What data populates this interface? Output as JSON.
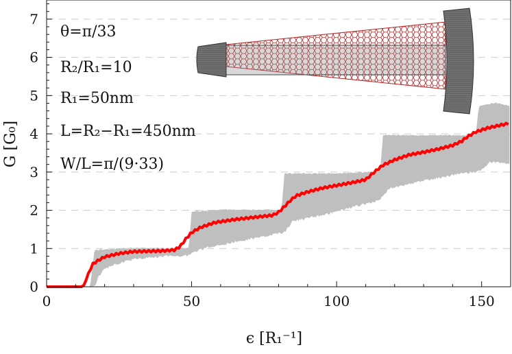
{
  "chart_data": {
    "type": "line",
    "title": "",
    "xlabel": "ϵ [R₁⁻¹]",
    "ylabel": "G [G₀]",
    "xlim": [
      0,
      160
    ],
    "ylim": [
      0,
      7.5
    ],
    "x_ticks": [
      "0",
      "50",
      "100",
      "150"
    ],
    "y_ticks": [
      "0",
      "1",
      "2",
      "3",
      "4",
      "5",
      "6",
      "7"
    ],
    "grid": "dashed horizontal lines at integer G",
    "annotations": [
      "θ=π/33",
      "R₂/R₁=10",
      "R₁=50nm",
      "L=R₂−R₁=450nm",
      "W/L=π/(9·33)"
    ],
    "colors": {
      "average": "#ff0000",
      "band": "#bfbfbf",
      "lead": "#6e6e6e",
      "lattice": "#b22222"
    },
    "series": [
      {
        "role": "fluctuating-band",
        "upper": [
          [
            0,
            0
          ],
          [
            15,
            0
          ],
          [
            16.5,
            0.95
          ],
          [
            30,
            1.0
          ],
          [
            49,
            1.0
          ],
          [
            50,
            1.95
          ],
          [
            60,
            2.0
          ],
          [
            81,
            2.0
          ],
          [
            82,
            2.95
          ],
          [
            100,
            2.95
          ],
          [
            115,
            3.0
          ],
          [
            116,
            3.95
          ],
          [
            135,
            3.95
          ],
          [
            148,
            3.95
          ],
          [
            149,
            4.7
          ],
          [
            155,
            4.8
          ],
          [
            160,
            4.7
          ]
        ],
        "lower": [
          [
            0,
            0
          ],
          [
            16,
            0
          ],
          [
            17,
            0.1
          ],
          [
            18,
            0.3
          ],
          [
            20,
            0.5
          ],
          [
            25,
            0.65
          ],
          [
            30,
            0.75
          ],
          [
            40,
            0.82
          ],
          [
            49,
            0.85
          ],
          [
            51,
            0.95
          ],
          [
            55,
            1.05
          ],
          [
            65,
            1.2
          ],
          [
            75,
            1.35
          ],
          [
            82,
            1.45
          ],
          [
            85,
            1.75
          ],
          [
            95,
            1.9
          ],
          [
            105,
            2.1
          ],
          [
            115,
            2.3
          ],
          [
            118,
            2.6
          ],
          [
            130,
            2.8
          ],
          [
            140,
            2.95
          ],
          [
            149,
            3.05
          ],
          [
            153,
            3.3
          ],
          [
            160,
            3.25
          ]
        ]
      },
      {
        "role": "average",
        "points": [
          [
            0,
            0
          ],
          [
            12,
            0
          ],
          [
            13,
            0.05
          ],
          [
            14,
            0.25
          ],
          [
            15,
            0.45
          ],
          [
            16,
            0.6
          ],
          [
            18,
            0.7
          ],
          [
            20,
            0.78
          ],
          [
            25,
            0.87
          ],
          [
            30,
            0.92
          ],
          [
            35,
            0.93
          ],
          [
            40,
            0.94
          ],
          [
            44,
            0.96
          ],
          [
            46,
            1.05
          ],
          [
            48,
            1.25
          ],
          [
            50,
            1.42
          ],
          [
            53,
            1.55
          ],
          [
            58,
            1.68
          ],
          [
            65,
            1.76
          ],
          [
            72,
            1.82
          ],
          [
            78,
            1.87
          ],
          [
            80,
            1.95
          ],
          [
            82,
            2.1
          ],
          [
            84,
            2.25
          ],
          [
            86,
            2.38
          ],
          [
            90,
            2.48
          ],
          [
            95,
            2.58
          ],
          [
            100,
            2.65
          ],
          [
            105,
            2.72
          ],
          [
            110,
            2.8
          ],
          [
            113,
            3.0
          ],
          [
            116,
            3.18
          ],
          [
            120,
            3.32
          ],
          [
            125,
            3.45
          ],
          [
            130,
            3.52
          ],
          [
            135,
            3.6
          ],
          [
            140,
            3.7
          ],
          [
            143,
            3.8
          ],
          [
            145,
            3.92
          ],
          [
            148,
            4.05
          ],
          [
            152,
            4.15
          ],
          [
            156,
            4.22
          ],
          [
            160,
            4.28
          ]
        ]
      }
    ]
  }
}
